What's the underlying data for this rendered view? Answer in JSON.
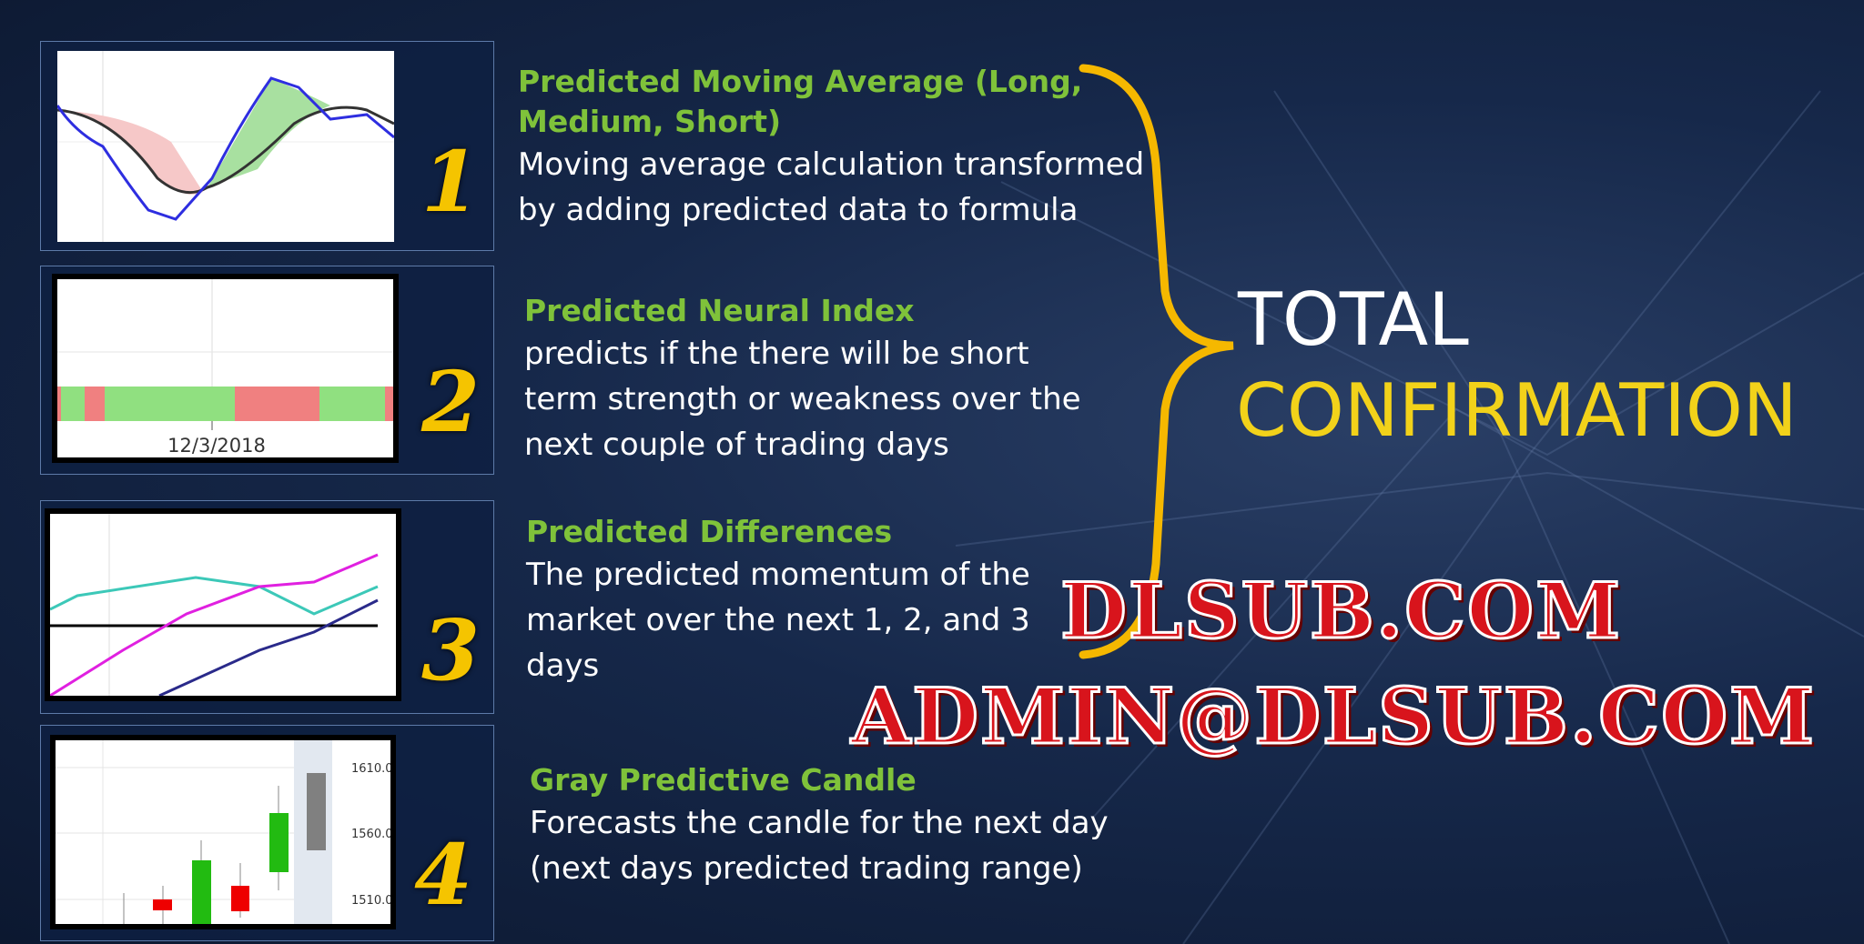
{
  "items": [
    {
      "number": "1",
      "title_lines": [
        "Predicted Moving Average (Long,",
        "Medium, Short)"
      ],
      "body_lines": [
        "Moving average calculation transformed",
        "by adding predicted data to formula"
      ]
    },
    {
      "number": "2",
      "title_lines": [
        "Predicted Neural Index"
      ],
      "body_lines": [
        "predicts if the there will be short",
        "term strength or weakness over the",
        "next couple of trading days"
      ],
      "axis_label": "12/3/2018"
    },
    {
      "number": "3",
      "title_lines": [
        "Predicted Differences"
      ],
      "body_lines": [
        "The predicted momentum of the",
        "market over the next 1, 2, and 3",
        "days"
      ]
    },
    {
      "number": "4",
      "title_lines": [
        "Gray Predictive Candle"
      ],
      "body_lines": [
        "Forecasts the candle for the next day",
        "(next days predicted trading range)"
      ],
      "y_ticks": [
        "1610.00",
        "1560.00",
        "1510.00"
      ]
    }
  ],
  "headline": {
    "line1": "TOTAL",
    "line2": "CONFIRMATION"
  },
  "watermark": {
    "line1": "DLSUB.COM",
    "line2": "ADMIN@DLSUB.COM"
  },
  "colors": {
    "title_green": "#7fc23a",
    "accent_yellow": "#f5c400",
    "watermark_red": "#d8141c"
  }
}
